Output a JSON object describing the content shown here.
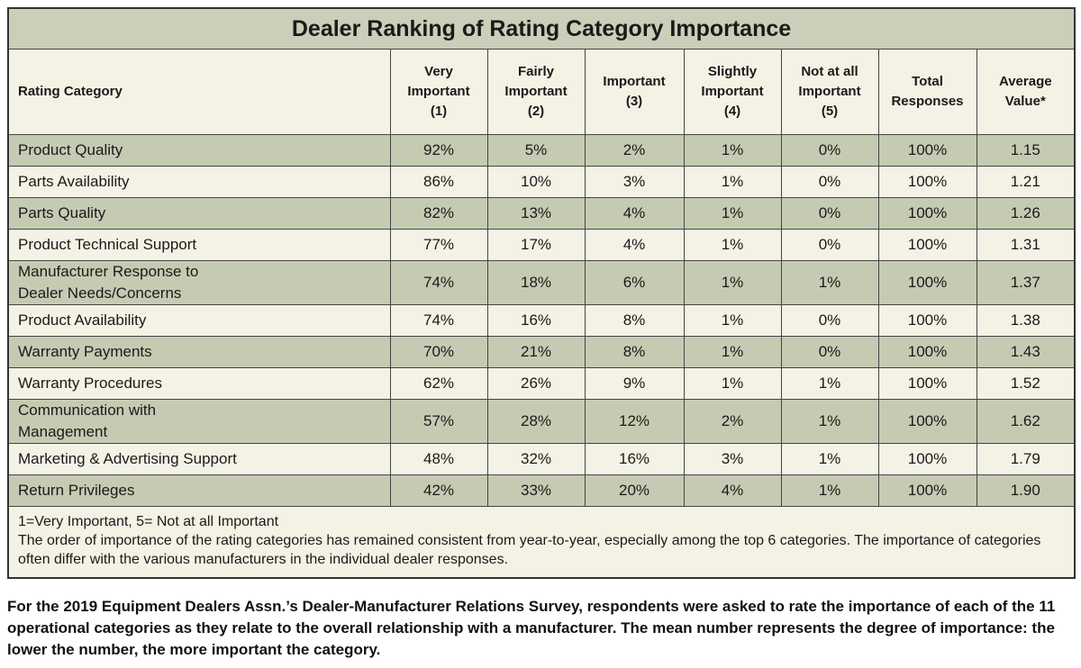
{
  "table": {
    "title": "Dealer Ranking of Rating Category Importance",
    "header": [
      "Rating Category",
      "Very\nImportant\n(1)",
      "Fairly\nImportant\n(2)",
      "Important\n(3)",
      "Slightly\nImportant\n(4)",
      "Not at all\nImportant\n(5)",
      "Total\nResponses",
      "Average\nValue*"
    ],
    "rows": [
      [
        "Product Quality",
        "92%",
        "5%",
        "2%",
        "1%",
        "0%",
        "100%",
        "1.15"
      ],
      [
        "Parts Availability",
        "86%",
        "10%",
        "3%",
        "1%",
        "0%",
        "100%",
        "1.21"
      ],
      [
        "Parts Quality",
        "82%",
        "13%",
        "4%",
        "1%",
        "0%",
        "100%",
        "1.26"
      ],
      [
        "Product Technical Support",
        "77%",
        "17%",
        "4%",
        "1%",
        "0%",
        "100%",
        "1.31"
      ],
      [
        "Manufacturer Response to Dealer Needs/Concerns",
        "74%",
        "18%",
        "6%",
        "1%",
        "1%",
        "100%",
        "1.37"
      ],
      [
        "Product Availability",
        "74%",
        "16%",
        "8%",
        "1%",
        "0%",
        "100%",
        "1.38"
      ],
      [
        "Warranty Payments",
        "70%",
        "21%",
        "8%",
        "1%",
        "0%",
        "100%",
        "1.43"
      ],
      [
        "Warranty Procedures",
        "62%",
        "26%",
        "9%",
        "1%",
        "1%",
        "100%",
        "1.52"
      ],
      [
        "Communication with Management",
        "57%",
        "28%",
        "12%",
        "2%",
        "1%",
        "100%",
        "1.62"
      ],
      [
        "Marketing & Advertising Support",
        "48%",
        "32%",
        "16%",
        "3%",
        "1%",
        "100%",
        "1.79"
      ],
      [
        "Return Privileges",
        "42%",
        "33%",
        "20%",
        "4%",
        "1%",
        "100%",
        "1.90"
      ]
    ],
    "notes": [
      "1=Very Important, 5= Not at all Important",
      "The order of importance of the rating categories has remained consistent from year-to-year, especially among the top 6 categories. The importance of categories often differ with the various manufacturers in the individual dealer responses."
    ]
  },
  "caption": "For the 2019 Equipment Dealers Assn.’s Dealer-Manufacturer Relations Survey, respondents were asked to rate the importance of each of the 11 operational categories as they relate to the overall relationship with a manufacturer. The mean number represents the degree of importance: the lower the number, the more important the category."
}
